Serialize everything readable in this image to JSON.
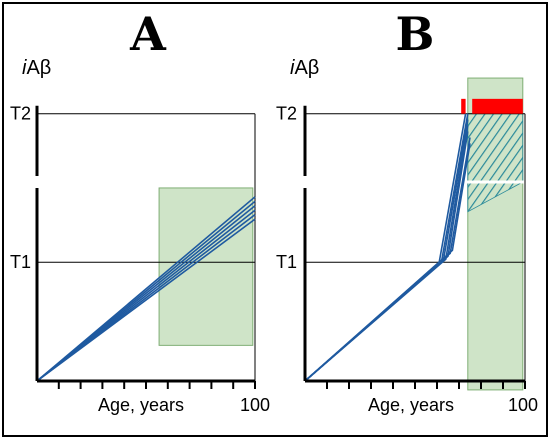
{
  "chart_data": [
    {
      "panel": "A",
      "type": "line",
      "title": "A",
      "ylabel_italic": "i",
      "ylabel_rest": "Aβ",
      "xlabel": "Age, years",
      "x_tick_label_end": "100",
      "y_tick_labels": [
        "T1",
        "T2"
      ],
      "xlim": [
        0,
        100
      ],
      "ylim": [
        0,
        100
      ],
      "levels": {
        "T1": 40,
        "T2": 90
      },
      "grid": false,
      "x_ticks": [
        10,
        20,
        30,
        40,
        50,
        60,
        70,
        80,
        90,
        100
      ],
      "highlight_region": {
        "x": [
          56,
          99
        ],
        "y": [
          12,
          65
        ],
        "color": "#cfe4c8"
      },
      "series": [
        {
          "points": [
            [
              0,
              0
            ],
            [
              100,
              62
            ]
          ]
        },
        {
          "points": [
            [
              0,
              0
            ],
            [
              100,
              60.5
            ]
          ]
        },
        {
          "points": [
            [
              0,
              0
            ],
            [
              100,
              59
            ]
          ]
        },
        {
          "points": [
            [
              0,
              0
            ],
            [
              100,
              57.5
            ]
          ]
        },
        {
          "points": [
            [
              0,
              0
            ],
            [
              100,
              56
            ]
          ]
        },
        {
          "points": [
            [
              0,
              0
            ],
            [
              100,
              54.5
            ]
          ]
        }
      ],
      "line_color": "#1f5aa0"
    },
    {
      "panel": "B",
      "type": "line",
      "title": "B",
      "ylabel_italic": "i",
      "ylabel_rest": "Aβ",
      "xlabel": "Age, years",
      "x_tick_label_end": "100",
      "y_tick_labels": [
        "T1",
        "T2"
      ],
      "xlim": [
        0,
        100
      ],
      "ylim": [
        0,
        100
      ],
      "levels": {
        "T1": 40,
        "T2": 90
      },
      "grid": false,
      "x_ticks": [
        10,
        20,
        30,
        40,
        50,
        60,
        70,
        80,
        90,
        100
      ],
      "highlight_region": {
        "x": [
          74,
          99
        ],
        "y": [
          -3,
          102
        ],
        "color": "#cfe4c8"
      },
      "red_bars": [
        {
          "x": [
            71,
            73
          ],
          "y": [
            90,
            95
          ]
        },
        {
          "x": [
            76,
            99
          ],
          "y": [
            90,
            95
          ]
        }
      ],
      "red_color": "#ff0000",
      "series": [
        {
          "points": [
            [
              0,
              0
            ],
            [
              61,
              40
            ],
            [
              73,
              90
            ]
          ]
        },
        {
          "points": [
            [
              0,
              0
            ],
            [
              62,
              40
            ],
            [
              74,
              90
            ]
          ]
        },
        {
          "points": [
            [
              0,
              0
            ],
            [
              63,
              41
            ],
            [
              74,
              88
            ]
          ]
        },
        {
          "points": [
            [
              0,
              0
            ],
            [
              64,
              41
            ],
            [
              74,
              86
            ]
          ]
        },
        {
          "points": [
            [
              0,
              0
            ],
            [
              65,
              42
            ],
            [
              74,
              84
            ]
          ]
        },
        {
          "points": [
            [
              0,
              0
            ],
            [
              66,
              43
            ],
            [
              75,
              82
            ]
          ]
        },
        {
          "points": [
            [
              0,
              0
            ],
            [
              67,
              44
            ],
            [
              75,
              80
            ]
          ]
        }
      ],
      "hatch": {
        "x": [
          74,
          99
        ],
        "y_top": 90,
        "y_bottom_left": 57,
        "y_bottom_right": 67
      },
      "white_break_level": 67,
      "line_color": "#1f5aa0"
    }
  ]
}
